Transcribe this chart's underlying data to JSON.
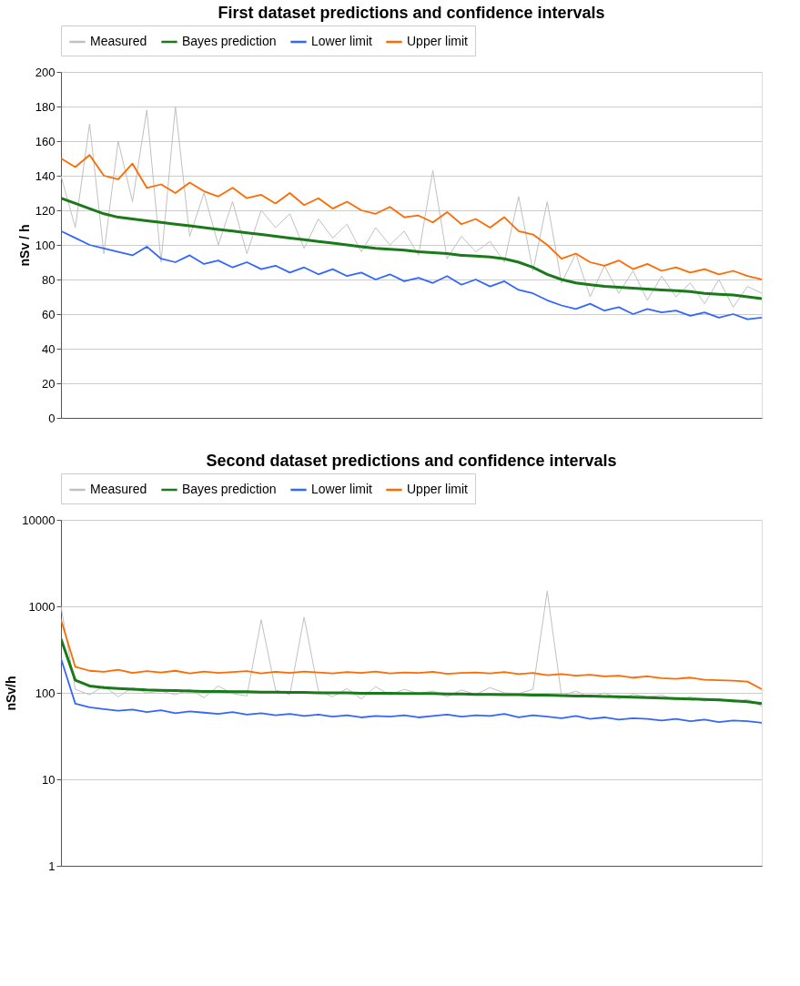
{
  "chart_data": [
    {
      "type": "line",
      "title": "First dataset predictions and confidence intervals",
      "ylabel": "nSv / h",
      "categories": [
        null,
        null,
        null,
        null,
        null,
        null,
        null,
        null,
        null,
        null,
        null,
        null,
        null,
        null,
        null,
        null,
        null,
        null,
        null,
        null,
        null,
        null,
        null,
        null,
        null,
        null,
        null,
        null,
        null,
        null,
        null,
        null,
        null,
        null,
        null,
        null,
        null,
        null,
        null,
        null,
        null,
        null,
        null,
        null,
        null,
        null,
        null,
        null,
        null,
        null
      ],
      "ylim": [
        0,
        200
      ],
      "yticks": [
        0,
        20,
        40,
        60,
        80,
        100,
        120,
        140,
        160,
        180,
        200
      ],
      "grid": "y",
      "legend": "top",
      "tick_labels": "y",
      "line_style": "solid",
      "marker": "none",
      "series": [
        {
          "name": "Measured",
          "color": "#c0c0c0",
          "values": [
            140,
            110,
            170,
            95,
            160,
            125,
            178,
            90,
            180,
            105,
            130,
            100,
            125,
            95,
            120,
            110,
            118,
            98,
            115,
            104,
            112,
            96,
            110,
            100,
            108,
            94,
            143,
            92,
            105,
            96,
            102,
            90,
            128,
            85,
            125,
            78,
            95,
            70,
            88,
            72,
            85,
            68,
            82,
            70,
            78,
            66,
            80,
            64,
            76,
            72
          ]
        },
        {
          "name": "Bayes prediction",
          "color": "#1a7a1a",
          "values": [
            127,
            124,
            121,
            118,
            116,
            115,
            114,
            113,
            112,
            111,
            110,
            109,
            108,
            107,
            106,
            105,
            104,
            103,
            102,
            101,
            100,
            99,
            98,
            97.5,
            97,
            96,
            95.5,
            95,
            94,
            93.5,
            93,
            92,
            90,
            87,
            83,
            80,
            78,
            77,
            76,
            75.5,
            75,
            74.5,
            74,
            73.5,
            73,
            72,
            71.5,
            71,
            70,
            69
          ]
        },
        {
          "name": "Lower limit",
          "color": "#3366ff",
          "values": [
            108,
            104,
            100,
            98,
            96,
            94,
            99,
            92,
            90,
            94,
            89,
            91,
            87,
            90,
            86,
            88,
            84,
            87,
            83,
            86,
            82,
            84,
            80,
            83,
            79,
            81,
            78,
            82,
            77,
            80,
            76,
            79,
            74,
            72,
            68,
            65,
            63,
            66,
            62,
            64,
            60,
            63,
            61,
            62,
            59,
            61,
            58,
            60,
            57,
            58
          ]
        },
        {
          "name": "Upper limit",
          "color": "#ff6a00",
          "values": [
            150,
            145,
            152,
            140,
            138,
            147,
            133,
            135,
            130,
            136,
            131,
            128,
            133,
            127,
            129,
            124,
            130,
            123,
            127,
            121,
            125,
            120,
            118,
            122,
            116,
            117,
            113,
            119,
            112,
            115,
            110,
            116,
            108,
            106,
            100,
            92,
            95,
            90,
            88,
            91,
            86,
            89,
            85,
            87,
            84,
            86,
            83,
            85,
            82,
            80
          ]
        }
      ]
    },
    {
      "type": "line",
      "title": "Second dataset predictions and confidence intervals",
      "ylabel": "nSv/h",
      "categories": [
        null,
        null,
        null,
        null,
        null,
        null,
        null,
        null,
        null,
        null,
        null,
        null,
        null,
        null,
        null,
        null,
        null,
        null,
        null,
        null,
        null,
        null,
        null,
        null,
        null,
        null,
        null,
        null,
        null,
        null,
        null,
        null,
        null,
        null,
        null,
        null,
        null,
        null,
        null,
        null,
        null,
        null,
        null,
        null,
        null,
        null,
        null,
        null,
        null,
        null
      ],
      "ylim": [
        1,
        10000
      ],
      "yticks": [
        1,
        10,
        100,
        1000,
        10000
      ],
      "log": "y",
      "grid": "y",
      "legend": "top",
      "tick_labels": "y",
      "line_style": "solid",
      "marker": "none",
      "series": [
        {
          "name": "Measured",
          "color": "#c0c0c0",
          "values": [
            1000,
            110,
            95,
            120,
            90,
            115,
            100,
            105,
            95,
            110,
            88,
            120,
            98,
            92,
            700,
            108,
            95,
            750,
            105,
            90,
            112,
            85,
            118,
            94,
            110,
            98,
            105,
            90,
            108,
            96,
            115,
            100,
            98,
            110,
            1500,
            92,
            105,
            88,
            100,
            85,
            96,
            90,
            94,
            82,
            90,
            80,
            86,
            78,
            84,
            70
          ]
        },
        {
          "name": "Bayes prediction",
          "color": "#1a7a1a",
          "values": [
            420,
            140,
            120,
            115,
            112,
            110,
            108,
            107,
            106,
            105,
            104,
            104,
            103,
            103,
            102,
            102,
            101,
            101,
            100,
            100,
            100,
            99,
            99,
            99,
            98,
            98,
            98,
            97,
            97,
            96,
            96,
            95,
            95,
            94,
            94,
            93,
            92,
            92,
            91,
            90,
            89,
            88,
            87,
            86,
            85,
            84,
            83,
            81,
            79,
            75
          ]
        },
        {
          "name": "Lower limit",
          "color": "#3366ff",
          "values": [
            250,
            75,
            68,
            65,
            62,
            64,
            60,
            63,
            58,
            61,
            59,
            57,
            60,
            56,
            58,
            55,
            57,
            54,
            56,
            53,
            55,
            52,
            54,
            53,
            55,
            52,
            54,
            56,
            53,
            55,
            54,
            57,
            52,
            55,
            53,
            51,
            54,
            50,
            52,
            49,
            51,
            50,
            48,
            50,
            47,
            49,
            46,
            48,
            47,
            45
          ]
        },
        {
          "name": "Upper limit",
          "color": "#ff6a00",
          "values": [
            700,
            200,
            180,
            175,
            185,
            170,
            178,
            172,
            180,
            168,
            176,
            170,
            174,
            178,
            168,
            175,
            170,
            176,
            172,
            168,
            174,
            170,
            176,
            168,
            172,
            170,
            175,
            166,
            170,
            172,
            168,
            174,
            165,
            170,
            160,
            165,
            158,
            162,
            155,
            158,
            150,
            155,
            148,
            145,
            150,
            142,
            140,
            138,
            135,
            110
          ]
        }
      ]
    }
  ]
}
